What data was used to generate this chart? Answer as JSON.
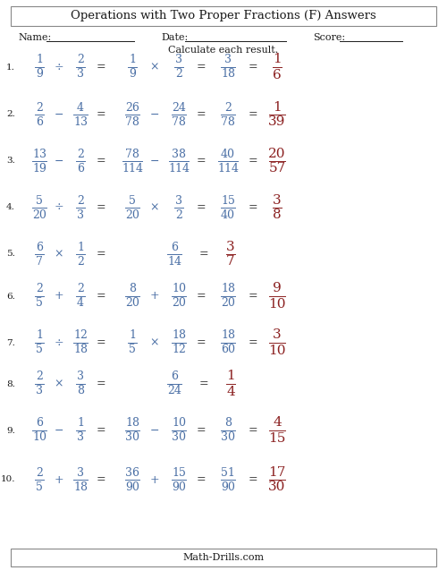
{
  "title": "Operations with Two Proper Fractions (F) Answers",
  "bg_color": "#ffffff",
  "blue_color": "#4a6fa5",
  "red_color": "#8b2020",
  "black_color": "#1a1a1a",
  "problems": [
    {
      "num": "1.",
      "q_n1": "1",
      "q_d1": "9",
      "op": "÷",
      "q_n2": "2",
      "q_d2": "3",
      "s1_n1": "1",
      "s1_d1": "9",
      "s1_op": "×",
      "s1_n2": "3",
      "s1_d2": "2",
      "s2_n": "3",
      "s2_d": "18",
      "ans_n": "1",
      "ans_d": "6",
      "no_step1": false
    },
    {
      "num": "2.",
      "q_n1": "2",
      "q_d1": "6",
      "op": "−",
      "q_n2": "4",
      "q_d2": "13",
      "s1_n1": "26",
      "s1_d1": "78",
      "s1_op": "−",
      "s1_n2": "24",
      "s1_d2": "78",
      "s2_n": "2",
      "s2_d": "78",
      "ans_n": "1",
      "ans_d": "39",
      "no_step1": false
    },
    {
      "num": "3.",
      "q_n1": "13",
      "q_d1": "19",
      "op": "−",
      "q_n2": "2",
      "q_d2": "6",
      "s1_n1": "78",
      "s1_d1": "114",
      "s1_op": "−",
      "s1_n2": "38",
      "s1_d2": "114",
      "s2_n": "40",
      "s2_d": "114",
      "ans_n": "20",
      "ans_d": "57",
      "no_step1": false
    },
    {
      "num": "4.",
      "q_n1": "5",
      "q_d1": "20",
      "op": "÷",
      "q_n2": "2",
      "q_d2": "3",
      "s1_n1": "5",
      "s1_d1": "20",
      "s1_op": "×",
      "s1_n2": "3",
      "s1_d2": "2",
      "s2_n": "15",
      "s2_d": "40",
      "ans_n": "3",
      "ans_d": "8",
      "no_step1": false
    },
    {
      "num": "5.",
      "q_n1": "6",
      "q_d1": "7",
      "op": "×",
      "q_n2": "1",
      "q_d2": "2",
      "s1_n1": "",
      "s1_d1": "",
      "s1_op": "",
      "s1_n2": "",
      "s1_d2": "",
      "s2_n": "6",
      "s2_d": "14",
      "ans_n": "3",
      "ans_d": "7",
      "no_step1": true
    },
    {
      "num": "6.",
      "q_n1": "2",
      "q_d1": "5",
      "op": "+",
      "q_n2": "2",
      "q_d2": "4",
      "s1_n1": "8",
      "s1_d1": "20",
      "s1_op": "+",
      "s1_n2": "10",
      "s1_d2": "20",
      "s2_n": "18",
      "s2_d": "20",
      "ans_n": "9",
      "ans_d": "10",
      "no_step1": false
    },
    {
      "num": "7.",
      "q_n1": "1",
      "q_d1": "5",
      "op": "÷",
      "q_n2": "12",
      "q_d2": "18",
      "s1_n1": "1",
      "s1_d1": "5",
      "s1_op": "×",
      "s1_n2": "18",
      "s1_d2": "12",
      "s2_n": "18",
      "s2_d": "60",
      "ans_n": "3",
      "ans_d": "10",
      "no_step1": false
    },
    {
      "num": "8.",
      "q_n1": "2",
      "q_d1": "3",
      "op": "×",
      "q_n2": "3",
      "q_d2": "8",
      "s1_n1": "",
      "s1_d1": "",
      "s1_op": "",
      "s1_n2": "",
      "s1_d2": "",
      "s2_n": "6",
      "s2_d": "24",
      "ans_n": "1",
      "ans_d": "4",
      "no_step1": true
    },
    {
      "num": "9.",
      "q_n1": "6",
      "q_d1": "10",
      "op": "−",
      "q_n2": "1",
      "q_d2": "3",
      "s1_n1": "18",
      "s1_d1": "30",
      "s1_op": "−",
      "s1_n2": "10",
      "s1_d2": "30",
      "s2_n": "8",
      "s2_d": "30",
      "ans_n": "4",
      "ans_d": "15",
      "no_step1": false
    },
    {
      "num": "10.",
      "q_n1": "2",
      "q_d1": "5",
      "op": "+",
      "q_n2": "3",
      "q_d2": "18",
      "s1_n1": "36",
      "s1_d1": "90",
      "s1_op": "+",
      "s1_n2": "15",
      "s1_d2": "90",
      "s2_n": "51",
      "s2_d": "90",
      "ans_n": "17",
      "ans_d": "30",
      "no_step1": false
    }
  ]
}
